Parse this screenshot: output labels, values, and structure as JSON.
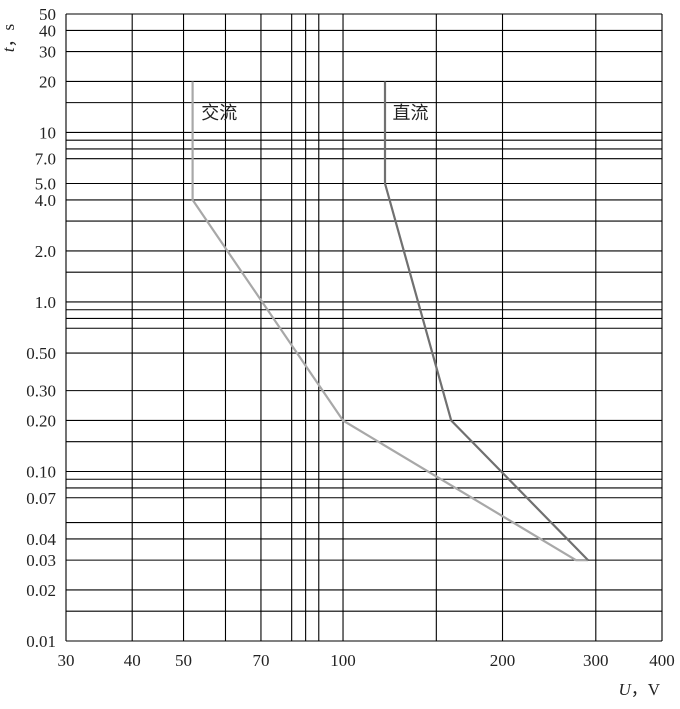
{
  "chart_data": {
    "type": "line",
    "xscale": "log",
    "yscale": "log",
    "xlim": [
      30,
      400
    ],
    "ylim": [
      0.01,
      50
    ],
    "grid": true,
    "x_grid": [
      30,
      40,
      50,
      60,
      70,
      80,
      85,
      90,
      100,
      150,
      200,
      300,
      400
    ],
    "y_grid": [
      0.01,
      0.015,
      0.02,
      0.03,
      0.04,
      0.05,
      0.07,
      0.08,
      0.09,
      0.1,
      0.15,
      0.2,
      0.3,
      0.5,
      0.7,
      0.8,
      0.9,
      1.0,
      1.5,
      2.0,
      3.0,
      4.0,
      5.0,
      7.0,
      8.0,
      9.0,
      10,
      15,
      20,
      30,
      40,
      50
    ],
    "x_ticks": [
      {
        "v": 30,
        "label": "30"
      },
      {
        "v": 40,
        "label": "40"
      },
      {
        "v": 50,
        "label": "50"
      },
      {
        "v": 70,
        "label": "70"
      },
      {
        "v": 100,
        "label": "100"
      },
      {
        "v": 200,
        "label": "200"
      },
      {
        "v": 300,
        "label": "300"
      },
      {
        "v": 400,
        "label": "400"
      }
    ],
    "y_ticks": [
      {
        "v": 50,
        "label": "50"
      },
      {
        "v": 40,
        "label": "40"
      },
      {
        "v": 30,
        "label": "30"
      },
      {
        "v": 20,
        "label": "20"
      },
      {
        "v": 10,
        "label": "10"
      },
      {
        "v": 7.0,
        "label": "7.0"
      },
      {
        "v": 5.0,
        "label": "5.0"
      },
      {
        "v": 4.0,
        "label": "4.0"
      },
      {
        "v": 2.0,
        "label": "2.0"
      },
      {
        "v": 1.0,
        "label": "1.0"
      },
      {
        "v": 0.5,
        "label": "0.50"
      },
      {
        "v": 0.3,
        "label": "0.30"
      },
      {
        "v": 0.2,
        "label": "0.20"
      },
      {
        "v": 0.1,
        "label": "0.10"
      },
      {
        "v": 0.07,
        "label": "0.07"
      },
      {
        "v": 0.04,
        "label": "0.04"
      },
      {
        "v": 0.03,
        "label": "0.03"
      },
      {
        "v": 0.02,
        "label": "0.02"
      },
      {
        "v": 0.01,
        "label": "0.01"
      }
    ],
    "xlabel_italic": "U",
    "xlabel_rest": "，V",
    "ylabel_italic": "t",
    "ylabel_rest": "，s",
    "series": [
      {
        "name": "交流",
        "color": "#a8a8a8",
        "points": [
          [
            52,
            20
          ],
          [
            52,
            4.0
          ],
          [
            100,
            0.2
          ],
          [
            275,
            0.03
          ],
          [
            290,
            0.03
          ]
        ]
      },
      {
        "name": "直流",
        "color": "#707070",
        "points": [
          [
            120,
            20
          ],
          [
            120,
            5.0
          ],
          [
            160,
            0.2
          ],
          [
            290,
            0.03
          ]
        ]
      }
    ],
    "annotations": [
      {
        "series": 0,
        "text": "交流",
        "at": [
          54,
          12
        ]
      },
      {
        "series": 1,
        "text": "直流",
        "at": [
          124,
          12
        ]
      }
    ]
  }
}
